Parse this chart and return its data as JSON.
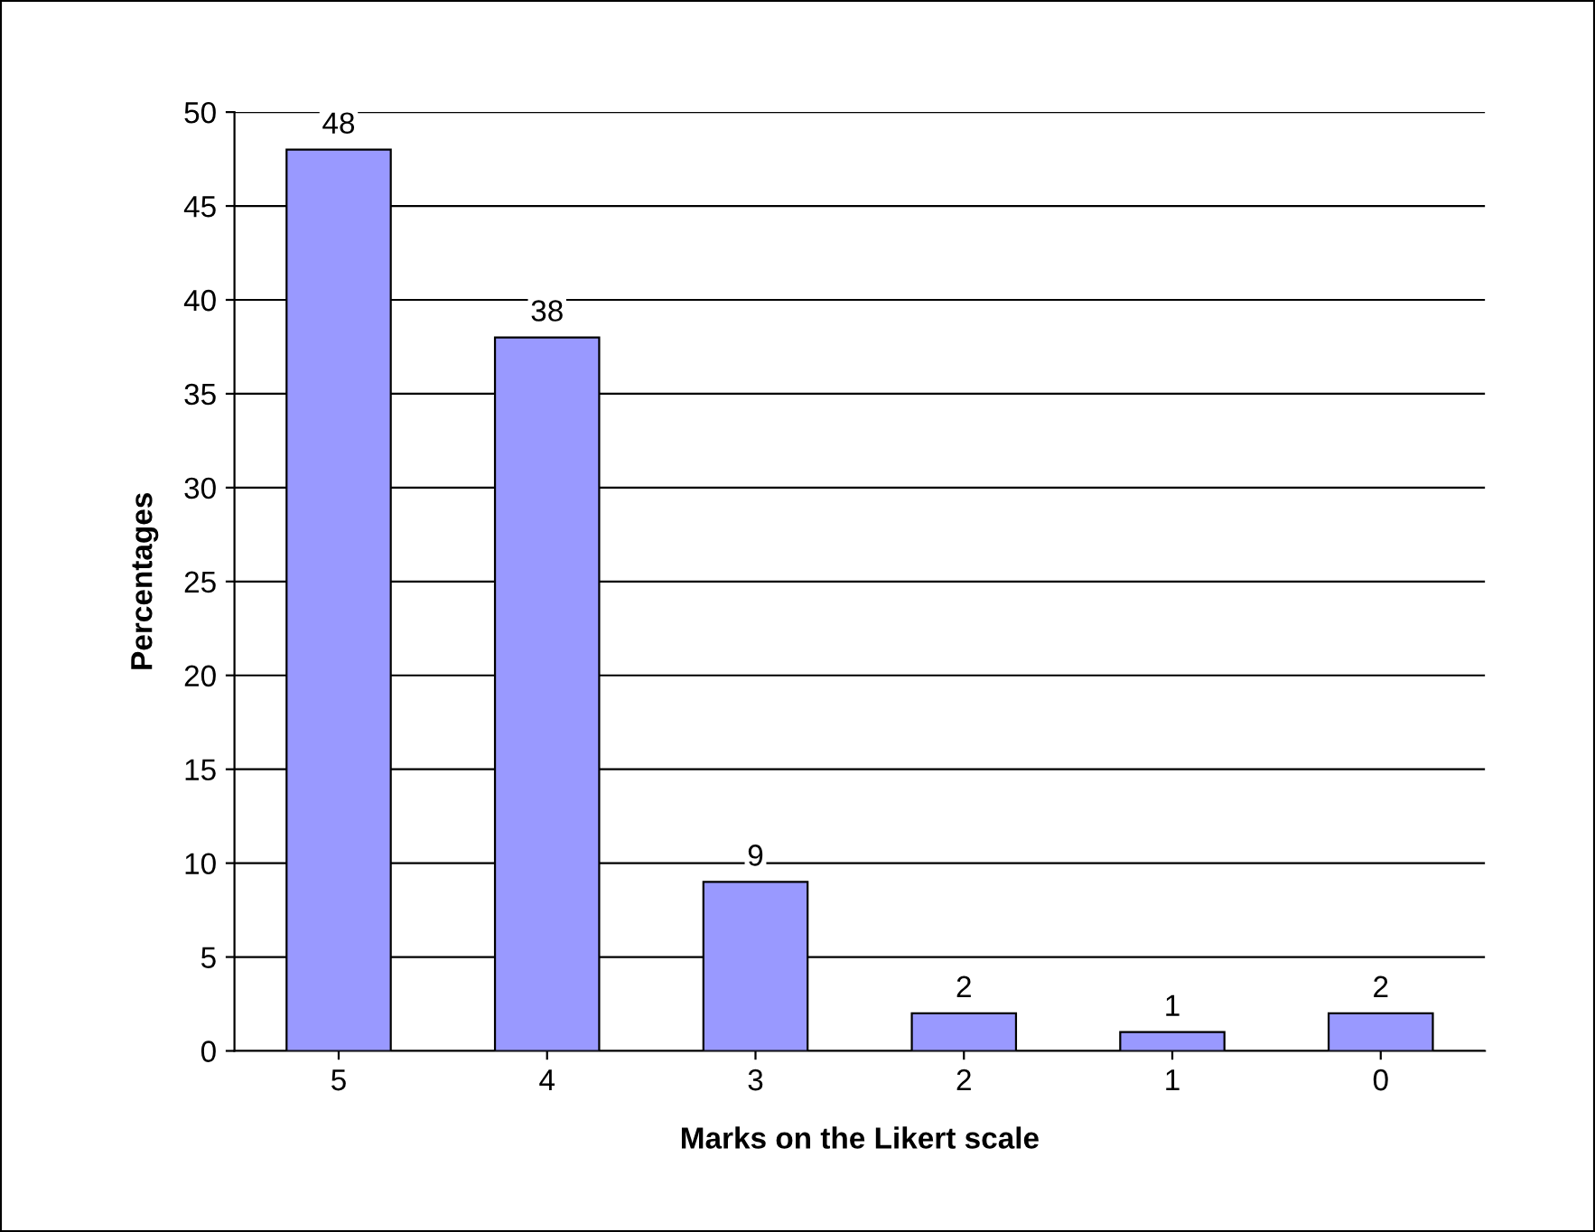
{
  "chart_data": {
    "type": "bar",
    "xlabel": "Marks on the Likert scale",
    "ylabel": "Percentages",
    "categories": [
      "5",
      "4",
      "3",
      "2",
      "1",
      "0"
    ],
    "values": [
      48,
      38,
      9,
      2,
      1,
      2
    ],
    "color": "#9999ff",
    "ylim": [
      0,
      50
    ],
    "yticks": [
      0,
      5,
      10,
      15,
      20,
      25,
      30,
      35,
      40,
      45,
      50
    ],
    "grid": "y",
    "data_labels": true
  }
}
